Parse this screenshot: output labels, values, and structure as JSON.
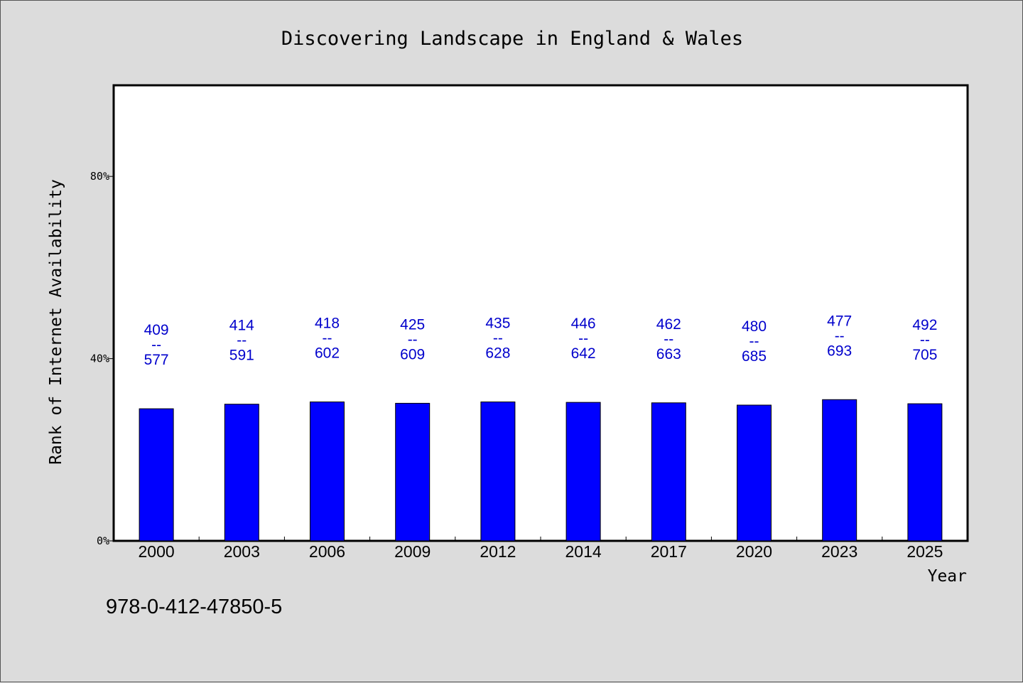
{
  "chart_data": {
    "type": "bar",
    "title": "Discovering Landscape in England & Wales",
    "xlabel": "Year",
    "ylabel": "Rank of Internet Availability",
    "categories": [
      "2000",
      "2003",
      "2006",
      "2009",
      "2012",
      "2014",
      "2017",
      "2020",
      "2023",
      "2025"
    ],
    "values": [
      0.29,
      0.3,
      0.305,
      0.302,
      0.305,
      0.304,
      0.303,
      0.298,
      0.31,
      0.301
    ],
    "labels_top": [
      "409",
      "414",
      "418",
      "425",
      "435",
      "446",
      "462",
      "480",
      "477",
      "492"
    ],
    "labels_separator": "--",
    "labels_bottom": [
      "577",
      "591",
      "602",
      "609",
      "628",
      "642",
      "663",
      "685",
      "693",
      "705"
    ],
    "ylim": [
      0,
      1.0
    ],
    "yticks": [
      0,
      0.4,
      0.8
    ],
    "ytick_labels": [
      "0%",
      "40%",
      "80%"
    ],
    "grid": false,
    "bar_color": "#0000ff",
    "label_color": "#0000cc"
  },
  "footer": {
    "isbn": "978-0-412-47850-5"
  }
}
